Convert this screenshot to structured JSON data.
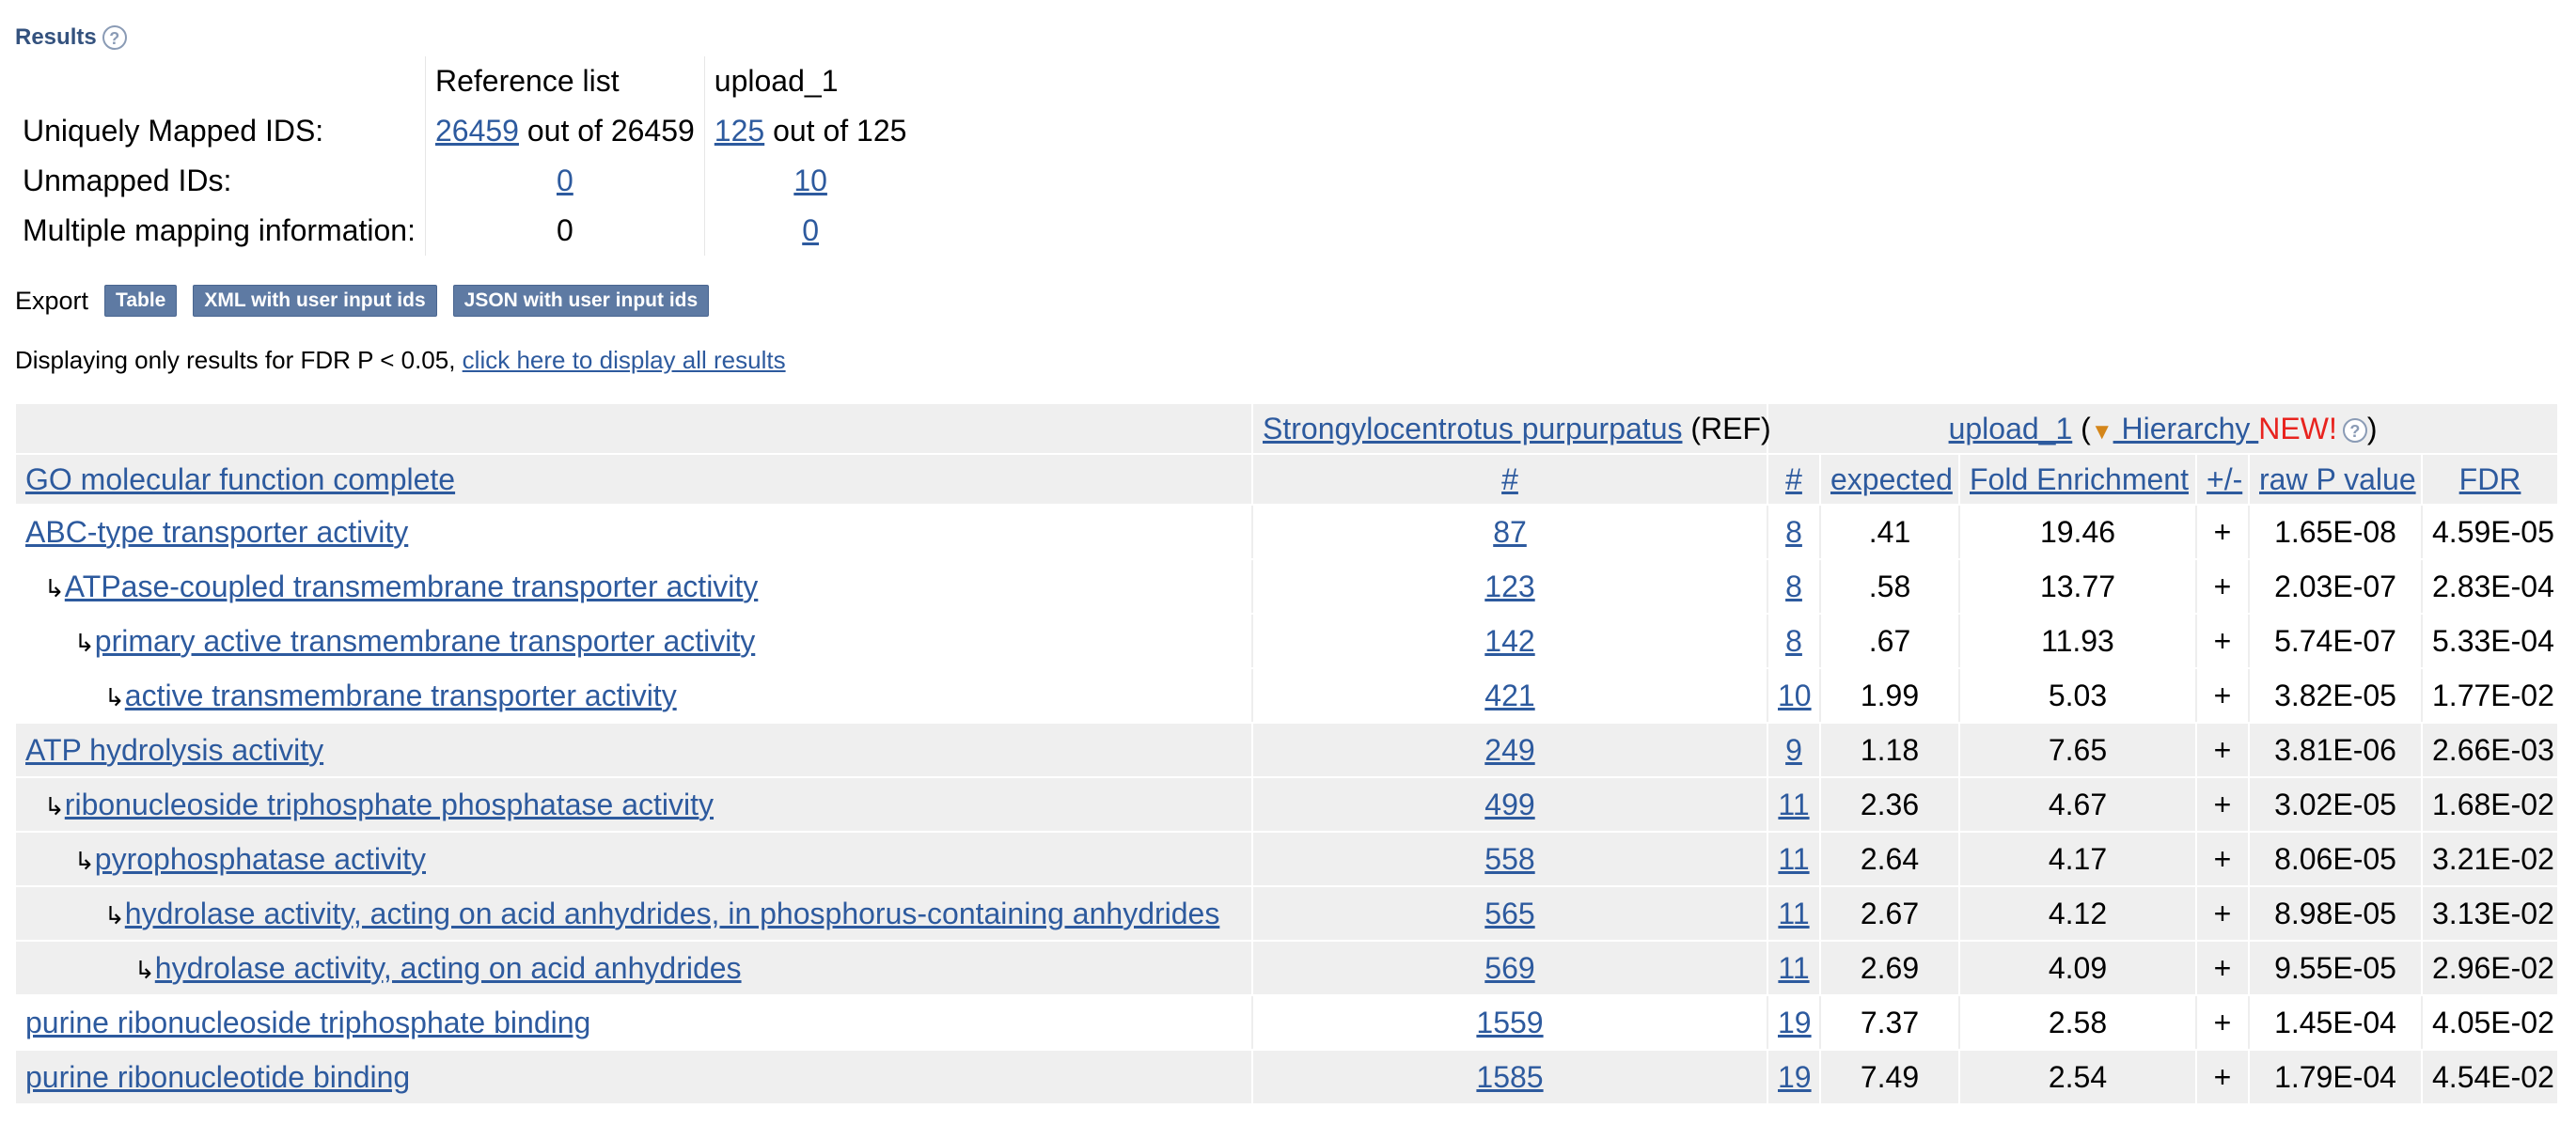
{
  "results": {
    "heading": "Results",
    "help_icon": "question-circle-icon",
    "help_glyph": "?"
  },
  "mapping": {
    "col_ref": "Reference list",
    "col_upload": "upload_1",
    "rows": [
      {
        "label": "Uniquely Mapped IDS:",
        "ref_link": "26459",
        "ref_suffix": " out of 26459",
        "up_link": "125",
        "up_suffix": " out of 125"
      },
      {
        "label": "Unmapped IDs:",
        "ref_link": "0",
        "up_link": "10"
      },
      {
        "label": "Multiple mapping information:",
        "ref_text": "0",
        "up_link": "0"
      }
    ]
  },
  "export": {
    "label": "Export",
    "buttons": [
      "Table",
      "XML with user input ids",
      "JSON with user input ids"
    ]
  },
  "note": {
    "text": "Displaying only results for FDR P < 0.05, ",
    "link": "click here to display all results"
  },
  "table": {
    "ref_species": "Strongylocentrotus purpurpatus",
    "ref_tag": " (REF)",
    "upload_link": "upload_1",
    "paren_open": " (",
    "hier_icon": "triangle-down-icon",
    "hierarchy_link": " Hierarchy ",
    "new_label": "NEW!",
    "paren_close": ")",
    "columns": {
      "category": "GO molecular function complete",
      "ref_count": "#",
      "count": "#",
      "expected": "expected",
      "fold": "Fold Enrichment",
      "sign": "+/-",
      "raw_p": "raw P value",
      "fdr": "FDR"
    },
    "rows": [
      {
        "indent": 0,
        "term": "ABC-type transporter activity",
        "ref": "87",
        "n": "8",
        "expected": ".41",
        "fold": "19.46",
        "sign": "+",
        "p": "1.65E-08",
        "fdr": "4.59E-05",
        "shade": "white"
      },
      {
        "indent": 1,
        "term": "ATPase-coupled transmembrane transporter activity",
        "ref": "123",
        "n": "8",
        "expected": ".58",
        "fold": "13.77",
        "sign": "+",
        "p": "2.03E-07",
        "fdr": "2.83E-04",
        "shade": "white"
      },
      {
        "indent": 2,
        "term": "primary active transmembrane transporter activity",
        "ref": "142",
        "n": "8",
        "expected": ".67",
        "fold": "11.93",
        "sign": "+",
        "p": "5.74E-07",
        "fdr": "5.33E-04",
        "shade": "white"
      },
      {
        "indent": 3,
        "term": "active transmembrane transporter activity",
        "ref": "421",
        "n": "10",
        "expected": "1.99",
        "fold": "5.03",
        "sign": "+",
        "p": "3.82E-05",
        "fdr": "1.77E-02",
        "shade": "white"
      },
      {
        "indent": 0,
        "term": "ATP hydrolysis activity",
        "ref": "249",
        "n": "9",
        "expected": "1.18",
        "fold": "7.65",
        "sign": "+",
        "p": "3.81E-06",
        "fdr": "2.66E-03",
        "shade": "shaded"
      },
      {
        "indent": 1,
        "term": "ribonucleoside triphosphate phosphatase activity",
        "ref": "499",
        "n": "11",
        "expected": "2.36",
        "fold": "4.67",
        "sign": "+",
        "p": "3.02E-05",
        "fdr": "1.68E-02",
        "shade": "shaded"
      },
      {
        "indent": 2,
        "term": "pyrophosphatase activity",
        "ref": "558",
        "n": "11",
        "expected": "2.64",
        "fold": "4.17",
        "sign": "+",
        "p": "8.06E-05",
        "fdr": "3.21E-02",
        "shade": "shaded"
      },
      {
        "indent": 3,
        "term": "hydrolase activity, acting on acid anhydrides, in phosphorus-containing anhydrides",
        "ref": "565",
        "n": "11",
        "expected": "2.67",
        "fold": "4.12",
        "sign": "+",
        "p": "8.98E-05",
        "fdr": "3.13E-02",
        "shade": "shaded"
      },
      {
        "indent": 4,
        "term": "hydrolase activity, acting on acid anhydrides",
        "ref": "569",
        "n": "11",
        "expected": "2.69",
        "fold": "4.09",
        "sign": "+",
        "p": "9.55E-05",
        "fdr": "2.96E-02",
        "shade": "shaded"
      },
      {
        "indent": 0,
        "term": "purine ribonucleoside triphosphate binding",
        "ref": "1559",
        "n": "19",
        "expected": "7.37",
        "fold": "2.58",
        "sign": "+",
        "p": "1.45E-04",
        "fdr": "4.05E-02",
        "shade": "white"
      },
      {
        "indent": 0,
        "term": "purine ribonucleotide binding",
        "ref": "1585",
        "n": "19",
        "expected": "7.49",
        "fold": "2.54",
        "sign": "+",
        "p": "1.79E-04",
        "fdr": "4.54E-02",
        "shade": "shaded"
      }
    ],
    "indent_glyph": "↳"
  }
}
